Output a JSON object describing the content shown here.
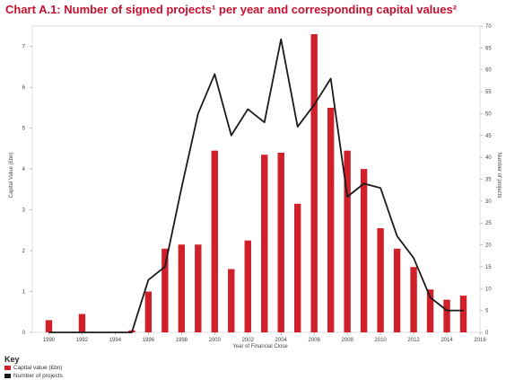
{
  "title": "Chart A.1: Number of signed projects¹ per year and corresponding capital values²",
  "key": {
    "title": "Key",
    "items": [
      {
        "label": "Capital value (£bn)",
        "color": "#d0202a"
      },
      {
        "label": "Number of projects",
        "color": "#1a1a1a"
      }
    ]
  },
  "chart_data": {
    "type": "bar+line",
    "xlabel": "Year of Financial Close",
    "ylabel_left": "Capital Value (£bn)",
    "ylabel_right": "Number of projects",
    "x_ticks": [
      1990,
      1992,
      1994,
      1996,
      1998,
      2000,
      2002,
      2004,
      2006,
      2008,
      2010,
      2012,
      2014,
      2016
    ],
    "xlim": [
      1989,
      2016
    ],
    "ylim_left": [
      0,
      7.5
    ],
    "ylim_right": [
      0,
      70
    ],
    "left_ticks": [
      0,
      1,
      2,
      3,
      4,
      5,
      6,
      7
    ],
    "right_ticks": [
      0,
      5,
      10,
      15,
      20,
      25,
      30,
      35,
      40,
      45,
      50,
      55,
      60,
      65,
      70
    ],
    "grid": false,
    "series": [
      {
        "name": "Capital value (£bn)",
        "kind": "bar",
        "color": "#d0202a",
        "x": [
          1990,
          1992,
          1995,
          1996,
          1997,
          1998,
          1999,
          2000,
          2001,
          2002,
          2003,
          2004,
          2005,
          2006,
          2007,
          2008,
          2009,
          2010,
          2011,
          2012,
          2013,
          2014,
          2015
        ],
        "values": [
          0.3,
          0.45,
          0.05,
          1.0,
          2.05,
          2.15,
          2.15,
          4.45,
          1.55,
          2.25,
          4.35,
          4.4,
          3.15,
          7.3,
          5.5,
          4.45,
          4.0,
          2.55,
          2.05,
          1.6,
          1.05,
          0.8,
          0.9
        ]
      },
      {
        "name": "Number of projects",
        "kind": "line",
        "color": "#1a1a1a",
        "x": [
          1990,
          1991,
          1992,
          1993,
          1994,
          1995,
          1996,
          1997,
          1998,
          1999,
          2000,
          2001,
          2002,
          2003,
          2004,
          2005,
          2006,
          2007,
          2008,
          2009,
          2010,
          2011,
          2012,
          2013,
          2014,
          2015
        ],
        "values": [
          0,
          0,
          0,
          0,
          0,
          0,
          12,
          15,
          33,
          50,
          59,
          45,
          51,
          48,
          67,
          47,
          52,
          58,
          31,
          34,
          33,
          22,
          17,
          8,
          5,
          5
        ]
      }
    ]
  }
}
